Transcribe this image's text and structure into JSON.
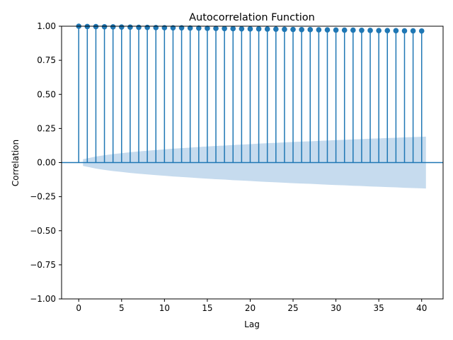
{
  "chart_data": {
    "type": "stem",
    "title": "Autocorrelation Function",
    "xlabel": "Lag",
    "ylabel": "Correlation",
    "xlim": [
      -2,
      42.5
    ],
    "ylim": [
      -1.0,
      1.0
    ],
    "xticks": [
      0,
      5,
      10,
      15,
      20,
      25,
      30,
      35,
      40
    ],
    "xtick_labels": [
      "0",
      "5",
      "10",
      "15",
      "20",
      "25",
      "30",
      "35",
      "40"
    ],
    "yticks": [
      -1.0,
      -0.75,
      -0.5,
      -0.25,
      0.0,
      0.25,
      0.5,
      0.75,
      1.0
    ],
    "ytick_labels": [
      "−1.00",
      "−0.75",
      "−0.50",
      "−0.25",
      "0.00",
      "0.25",
      "0.50",
      "0.75",
      "1.00"
    ],
    "grid": false,
    "colors": {
      "stem": "#1f77b4",
      "confidence_band": "#c6dbee"
    },
    "lags": [
      0,
      1,
      2,
      3,
      4,
      5,
      6,
      7,
      8,
      9,
      10,
      11,
      12,
      13,
      14,
      15,
      16,
      17,
      18,
      19,
      20,
      21,
      22,
      23,
      24,
      25,
      26,
      27,
      28,
      29,
      30,
      31,
      32,
      33,
      34,
      35,
      36,
      37,
      38,
      39,
      40
    ],
    "values": [
      1.0,
      0.998,
      0.997,
      0.996,
      0.995,
      0.994,
      0.993,
      0.992,
      0.991,
      0.99,
      0.989,
      0.988,
      0.988,
      0.987,
      0.986,
      0.985,
      0.984,
      0.983,
      0.982,
      0.981,
      0.98,
      0.98,
      0.979,
      0.978,
      0.977,
      0.976,
      0.975,
      0.975,
      0.974,
      0.973,
      0.972,
      0.971,
      0.971,
      0.97,
      0.969,
      0.968,
      0.968,
      0.967,
      0.966,
      0.966,
      0.965
    ],
    "confidence_band": {
      "x": [
        0.5,
        1,
        2,
        3,
        4,
        5,
        6,
        7,
        8,
        9,
        10,
        11,
        12,
        13,
        14,
        15,
        16,
        17,
        18,
        19,
        20,
        21,
        22,
        23,
        24,
        25,
        26,
        27,
        28,
        29,
        30,
        31,
        32,
        33,
        34,
        35,
        36,
        37,
        38,
        39,
        40,
        40.5
      ],
      "upper": [
        0.025,
        0.031,
        0.044,
        0.054,
        0.062,
        0.069,
        0.076,
        0.082,
        0.087,
        0.092,
        0.097,
        0.102,
        0.106,
        0.11,
        0.114,
        0.118,
        0.122,
        0.125,
        0.129,
        0.132,
        0.135,
        0.139,
        0.142,
        0.145,
        0.148,
        0.151,
        0.154,
        0.156,
        0.159,
        0.162,
        0.165,
        0.167,
        0.17,
        0.172,
        0.175,
        0.177,
        0.18,
        0.182,
        0.185,
        0.187,
        0.189,
        0.19
      ]
    }
  }
}
